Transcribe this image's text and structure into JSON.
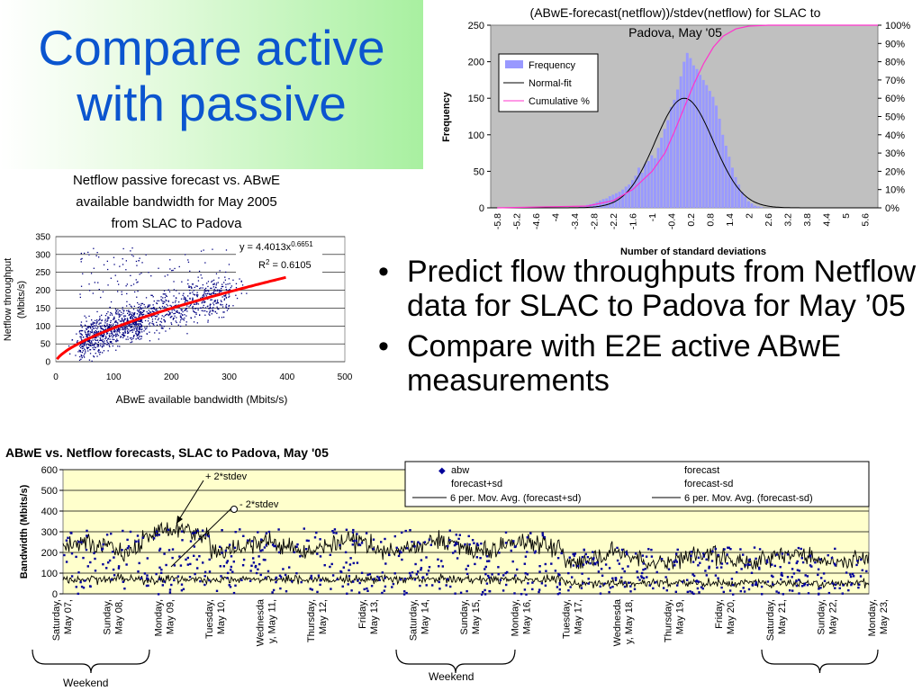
{
  "slide": {
    "title_line1": "Compare active",
    "title_line2": "with passive",
    "bullets": [
      "Predict flow throughputs from Netflow data for SLAC to Padova for May ’05",
      "Compare with E2E active ABwE measurements"
    ]
  },
  "colors": {
    "title": "#0b55cf",
    "histogram_bars": "#9999ff",
    "plot_background": "#c0c0c0",
    "normal_fit": "#000000",
    "cumulative": "#ff33cc",
    "scatter_points": "#000080",
    "regression": "#ff0000",
    "timeseries_background": "#ffffcc",
    "abw_points": "#00009a"
  },
  "chart_data": [
    {
      "id": "histogram",
      "type": "bar",
      "title_line1": "(ABwE-forecast(netflow))/stdev(netflow) for SLAC to",
      "title_line2": "Padova, May '05",
      "xlabel": "Number of standard deviations",
      "ylabel": "Frequency",
      "ylim": [
        0,
        250
      ],
      "y_ticks": [
        "0",
        "50",
        "100",
        "150",
        "200",
        "250"
      ],
      "y2_ticks": [
        "0%",
        "10%",
        "20%",
        "30%",
        "40%",
        "50%",
        "60%",
        "70%",
        "80%",
        "90%",
        "100%"
      ],
      "x_ticks": [
        "-5.8",
        "-5.2",
        "-4.6",
        "-4",
        "-3.4",
        "-2.8",
        "-2.2",
        "-1.6",
        "-1",
        "-0.4",
        "0.2",
        "0.8",
        "1.4",
        "2",
        "2.6",
        "3.2",
        "3.8",
        "4.4",
        "5",
        "5.6"
      ],
      "grid": false,
      "legend_position": "top-left",
      "legend": [
        "Frequency",
        "Normal-fit",
        "Cumulative %"
      ],
      "x_range": [
        -6.0,
        6.0
      ],
      "bin_width": 0.1,
      "bins": [
        {
          "x": -3.2,
          "y": 2
        },
        {
          "x": -3.1,
          "y": 3
        },
        {
          "x": -3.0,
          "y": 4
        },
        {
          "x": -2.9,
          "y": 5
        },
        {
          "x": -2.8,
          "y": 6
        },
        {
          "x": -2.7,
          "y": 8
        },
        {
          "x": -2.6,
          "y": 10
        },
        {
          "x": -2.5,
          "y": 12
        },
        {
          "x": -2.4,
          "y": 13
        },
        {
          "x": -2.3,
          "y": 16
        },
        {
          "x": -2.2,
          "y": 18
        },
        {
          "x": -2.1,
          "y": 20
        },
        {
          "x": -2.0,
          "y": 22
        },
        {
          "x": -1.9,
          "y": 25
        },
        {
          "x": -1.8,
          "y": 29
        },
        {
          "x": -1.7,
          "y": 32
        },
        {
          "x": -1.6,
          "y": 38
        },
        {
          "x": -1.5,
          "y": 44
        },
        {
          "x": -1.4,
          "y": 55
        },
        {
          "x": -1.3,
          "y": 48
        },
        {
          "x": -1.2,
          "y": 60
        },
        {
          "x": -1.1,
          "y": 64
        },
        {
          "x": -1.0,
          "y": 72
        },
        {
          "x": -0.9,
          "y": 68
        },
        {
          "x": -0.8,
          "y": 82
        },
        {
          "x": -0.7,
          "y": 96
        },
        {
          "x": -0.6,
          "y": 108
        },
        {
          "x": -0.5,
          "y": 120
        },
        {
          "x": -0.4,
          "y": 138
        },
        {
          "x": -0.3,
          "y": 148
        },
        {
          "x": -0.2,
          "y": 162
        },
        {
          "x": -0.1,
          "y": 180
        },
        {
          "x": 0.0,
          "y": 200
        },
        {
          "x": 0.1,
          "y": 212
        },
        {
          "x": 0.2,
          "y": 205
        },
        {
          "x": 0.3,
          "y": 195
        },
        {
          "x": 0.4,
          "y": 190
        },
        {
          "x": 0.5,
          "y": 182
        },
        {
          "x": 0.6,
          "y": 175
        },
        {
          "x": 0.7,
          "y": 168
        },
        {
          "x": 0.8,
          "y": 160
        },
        {
          "x": 0.9,
          "y": 152
        },
        {
          "x": 1.0,
          "y": 140
        },
        {
          "x": 1.1,
          "y": 122
        },
        {
          "x": 1.2,
          "y": 100
        },
        {
          "x": 1.3,
          "y": 85
        },
        {
          "x": 1.4,
          "y": 70
        },
        {
          "x": 1.5,
          "y": 55
        },
        {
          "x": 1.6,
          "y": 42
        },
        {
          "x": 1.7,
          "y": 32
        },
        {
          "x": 1.8,
          "y": 22
        },
        {
          "x": 1.9,
          "y": 15
        },
        {
          "x": 2.0,
          "y": 9
        },
        {
          "x": 2.1,
          "y": 6
        },
        {
          "x": 2.2,
          "y": 3
        },
        {
          "x": 2.3,
          "y": 2
        },
        {
          "x": 2.4,
          "y": 1
        }
      ],
      "normal_fit": {
        "mean": 0.0,
        "peak": 150,
        "stdev": 0.9
      },
      "cumulative_percent": [
        {
          "x": -5.8,
          "y": 0
        },
        {
          "x": -3.0,
          "y": 1
        },
        {
          "x": -2.2,
          "y": 4
        },
        {
          "x": -1.6,
          "y": 10
        },
        {
          "x": -1.0,
          "y": 20
        },
        {
          "x": -0.6,
          "y": 30
        },
        {
          "x": -0.3,
          "y": 42
        },
        {
          "x": 0.0,
          "y": 55
        },
        {
          "x": 0.3,
          "y": 68
        },
        {
          "x": 0.6,
          "y": 79
        },
        {
          "x": 0.9,
          "y": 88
        },
        {
          "x": 1.2,
          "y": 94
        },
        {
          "x": 1.6,
          "y": 98
        },
        {
          "x": 2.0,
          "y": 99.5
        },
        {
          "x": 2.6,
          "y": 100
        },
        {
          "x": 6.0,
          "y": 100
        }
      ]
    },
    {
      "id": "scatter",
      "type": "scatter",
      "title_line1": "Netflow passive forecast vs. ABwE",
      "title_line2": "available bandwidth for May 2005",
      "title_line3": "from SLAC to Padova",
      "xlabel": "ABwE available bandwidth (Mbits/s)",
      "ylabel_line1": "Netflow throughput",
      "ylabel_line2": "(Mbits/s)",
      "xlim": [
        0,
        500
      ],
      "ylim": [
        0,
        350
      ],
      "x_ticks": [
        "0",
        "100",
        "200",
        "300",
        "400",
        "500"
      ],
      "y_ticks": [
        "0",
        "50",
        "100",
        "150",
        "200",
        "250",
        "300",
        "350"
      ],
      "grid": true,
      "fit_equation_prefix": "y = 4.4013x",
      "fit_equation_exponent": "0.6651",
      "r_squared_prefix": "R",
      "r_squared_exp": "2",
      "r_squared_value": " = 0.6105",
      "fit": {
        "a": 4.4013,
        "b": 0.6651,
        "x_min": 2,
        "x_max": 400
      },
      "points_note": "dense cloud: x 20–330, y 0–320, concentrated around x 40–150"
    },
    {
      "id": "timeseries",
      "type": "line",
      "title": "ABwE vs. Netflow forecasts, SLAC to Padova, May '05",
      "ylabel": "Bandwidth (Mbits/s)",
      "ylim": [
        0,
        600
      ],
      "y_ticks": [
        "0",
        "100",
        "200",
        "300",
        "400",
        "500",
        "600"
      ],
      "grid": true,
      "legend_position": "top-right",
      "legend": [
        "abw",
        "forecast",
        "forecast+sd",
        "forecast-sd",
        "6 per. Mov. Avg. (forecast+sd)",
        "6 per. Mov. Avg. (forecast-sd)"
      ],
      "annotations": [
        "+ 2*stdev",
        "- 2*stdev"
      ],
      "x_labels": [
        [
          "Saturday,",
          "May 07,"
        ],
        [
          "Sunday,",
          "May 08,"
        ],
        [
          "Monday,",
          "May 09,"
        ],
        [
          "Tuesday,",
          "May 10,"
        ],
        [
          "Wednesda",
          "y, May 11,"
        ],
        [
          "Thursday,",
          "May 12,"
        ],
        [
          "Friday,",
          "May 13,"
        ],
        [
          "Saturday,",
          "May 14,"
        ],
        [
          "Sunday,",
          "May 15,"
        ],
        [
          "Monday,",
          "May 16,"
        ],
        [
          "Tuesday,",
          "May 17,"
        ],
        [
          "Wednesda",
          "y, May 18,"
        ],
        [
          "Thursday,",
          "May 19,"
        ],
        [
          "Friday,",
          "May 20,"
        ],
        [
          "Saturday,",
          "May 21,"
        ],
        [
          "Sunday,",
          "May 22,"
        ],
        [
          "Monday,",
          "May 23,"
        ]
      ],
      "weekend_label": "Weekend",
      "series_summary": {
        "forecast_plus_sd_level": 230,
        "forecast_minus_sd_level": 70,
        "abw_range": [
          0,
          350
        ]
      }
    }
  ]
}
